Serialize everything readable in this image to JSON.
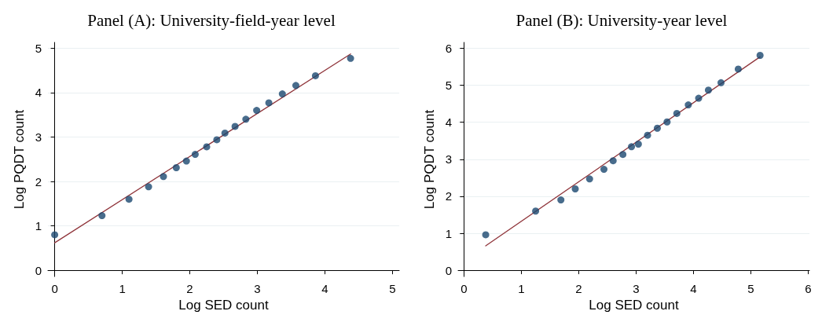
{
  "chart_data": [
    {
      "type": "scatter",
      "title": "Panel (A): University-field-year level",
      "xlabel": "Log SED count",
      "ylabel": "Log PQDT count",
      "xlim": [
        -0.1,
        5.1
      ],
      "ylim": [
        -0.14,
        5.13
      ],
      "xticks": [
        0,
        1,
        2,
        3,
        4,
        5
      ],
      "yticks": [
        0,
        1,
        2,
        3,
        4,
        5
      ],
      "grid": "y",
      "marker": "circle",
      "series": [
        {
          "color": "#1a476f",
          "x": [
            0,
            0.7,
            1.1,
            1.39,
            1.61,
            1.8,
            1.95,
            2.08,
            2.25,
            2.4,
            2.52,
            2.67,
            2.83,
            2.99,
            3.17,
            3.37,
            3.57,
            3.86,
            4.38
          ],
          "values": [
            0.8,
            1.23,
            1.6,
            1.88,
            2.11,
            2.31,
            2.46,
            2.61,
            2.78,
            2.94,
            3.09,
            3.24,
            3.4,
            3.6,
            3.77,
            3.97,
            4.16,
            4.38,
            4.77
          ]
        },
        {
          "type": "line",
          "marker": "none",
          "color": "#90353b",
          "x": [
            0,
            4.38
          ],
          "values": [
            0.62,
            4.87
          ]
        }
      ]
    },
    {
      "type": "scatter",
      "title": "Panel (B): University-year level",
      "xlabel": "Log SED count",
      "ylabel": "Log PQDT count",
      "xlim": [
        -0.1,
        6.02
      ],
      "ylim": [
        -0.17,
        6.16
      ],
      "xticks": [
        0,
        1,
        2,
        3,
        4,
        5,
        6
      ],
      "yticks": [
        0,
        1,
        2,
        3,
        4,
        5,
        6
      ],
      "grid": "y",
      "marker": "circle",
      "series": [
        {
          "color": "#1a476f",
          "x": [
            0.38,
            1.25,
            1.69,
            1.94,
            2.19,
            2.44,
            2.6,
            2.77,
            2.92,
            3.04,
            3.2,
            3.37,
            3.54,
            3.71,
            3.91,
            4.09,
            4.26,
            4.48,
            4.78,
            5.16
          ],
          "values": [
            0.96,
            1.6,
            1.9,
            2.2,
            2.47,
            2.73,
            2.96,
            3.13,
            3.34,
            3.41,
            3.65,
            3.84,
            4.01,
            4.24,
            4.47,
            4.65,
            4.87,
            5.07,
            5.44,
            5.81
          ]
        },
        {
          "type": "line",
          "marker": "none",
          "color": "#90353b",
          "x": [
            0.38,
            5.16
          ],
          "values": [
            0.66,
            5.77
          ]
        }
      ]
    }
  ]
}
